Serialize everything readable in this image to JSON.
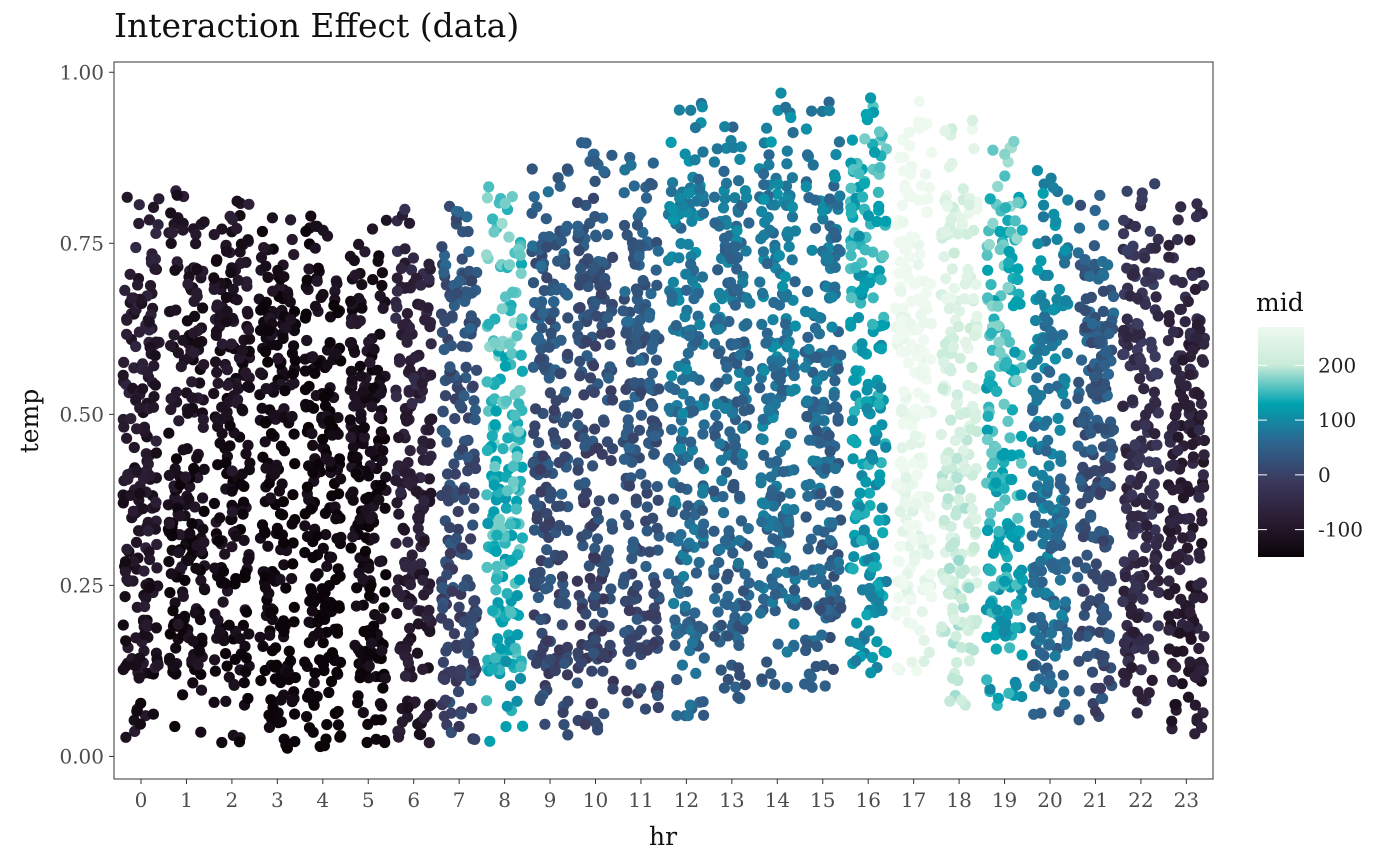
{
  "chart_data": {
    "type": "scatter",
    "title": "Interaction Effect (data)",
    "xlabel": "hr",
    "ylabel": "temp",
    "x_categories": [
      "0",
      "1",
      "2",
      "3",
      "4",
      "5",
      "6",
      "7",
      "8",
      "9",
      "10",
      "11",
      "12",
      "13",
      "14",
      "15",
      "16",
      "17",
      "18",
      "19",
      "20",
      "21",
      "22",
      "23"
    ],
    "y_ticks": [
      "0.00",
      "0.25",
      "0.50",
      "0.75",
      "1.00"
    ],
    "y_tick_values": [
      0,
      0.25,
      0.5,
      0.75,
      1.0
    ],
    "ylim": [
      -0.033,
      1.015
    ],
    "grid": false,
    "jitter": "horizontal",
    "color_legend": {
      "title": "mid",
      "labels": [
        "200",
        "100",
        "0",
        "-100"
      ],
      "values": [
        200,
        100,
        0,
        -100
      ],
      "range": [
        -150,
        270
      ],
      "placement": "right",
      "palette": [
        "#0b0409",
        "#2b1d33",
        "#3b3a5e",
        "#2c6690",
        "#00a3b1",
        "#c8ebd8",
        "#eef9ef"
      ]
    },
    "hourly_color_value": [
      -95,
      -115,
      -120,
      -135,
      -140,
      -125,
      -75,
      20,
      150,
      25,
      15,
      30,
      70,
      60,
      70,
      60,
      120,
      270,
      220,
      140,
      80,
      30,
      -40,
      -70
    ],
    "hourly_temp_range": [
      [
        0.02,
        0.83
      ],
      [
        0.03,
        0.83
      ],
      [
        0.02,
        0.82
      ],
      [
        0.01,
        0.8
      ],
      [
        0.01,
        0.79
      ],
      [
        0.02,
        0.79
      ],
      [
        0.02,
        0.8
      ],
      [
        0.01,
        0.81
      ],
      [
        0.02,
        0.84
      ],
      [
        0.03,
        0.86
      ],
      [
        0.03,
        0.9
      ],
      [
        0.05,
        0.91
      ],
      [
        0.05,
        0.96
      ],
      [
        0.08,
        0.95
      ],
      [
        0.1,
        0.97
      ],
      [
        0.1,
        0.96
      ],
      [
        0.12,
        0.97
      ],
      [
        0.12,
        0.96
      ],
      [
        0.07,
        0.93
      ],
      [
        0.07,
        0.9
      ],
      [
        0.05,
        0.86
      ],
      [
        0.05,
        0.83
      ],
      [
        0.06,
        0.84
      ],
      [
        0.03,
        0.81
      ]
    ],
    "points_per_hour": 210
  }
}
